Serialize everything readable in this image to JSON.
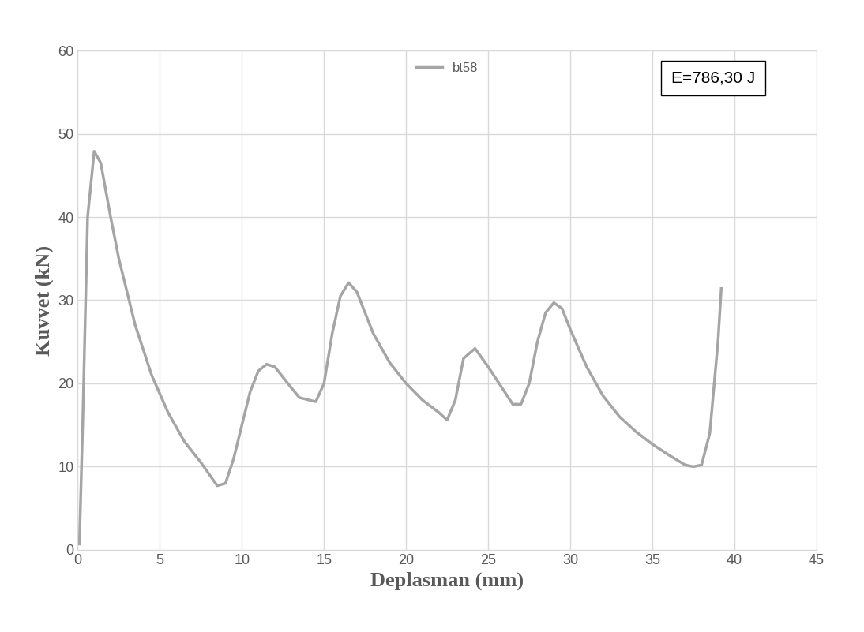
{
  "chart_data": {
    "type": "line",
    "x_label": "Deplasman (mm)",
    "y_label": "Kuvvet (kN)",
    "annotation": "E=786,30 J",
    "series": [
      {
        "name": "bt58",
        "color": "#a5a5a5",
        "x": [
          0.1,
          0.3,
          0.6,
          1.0,
          1.4,
          2.0,
          2.5,
          3.5,
          4.5,
          5.5,
          6.5,
          7.5,
          8.5,
          9.0,
          9.5,
          10.0,
          10.5,
          11.0,
          11.5,
          12.0,
          13.0,
          13.5,
          14.5,
          15.0,
          15.5,
          16.0,
          16.5,
          17.0,
          18.0,
          19.0,
          20.0,
          21.0,
          22.0,
          22.5,
          23.0,
          23.5,
          24.2,
          25.0,
          26.0,
          26.5,
          27.0,
          27.5,
          28.0,
          28.5,
          29.0,
          29.5,
          30.0,
          31.0,
          32.0,
          33.0,
          34.0,
          35.0,
          36.0,
          37.0,
          37.5,
          38.0,
          38.5,
          39.0,
          39.2
        ],
        "values": [
          0.7,
          15,
          40,
          47.9,
          46.5,
          40,
          35,
          27,
          21,
          16.5,
          13,
          10.5,
          7.7,
          8.0,
          11,
          15,
          19,
          21.5,
          22.3,
          22,
          19.5,
          18.3,
          17.8,
          20,
          26,
          30.5,
          32.1,
          31,
          26,
          22.5,
          20,
          18,
          16.5,
          15.6,
          18,
          23,
          24.2,
          22,
          19,
          17.5,
          17.5,
          20,
          25,
          28.5,
          29.7,
          29,
          26.5,
          22,
          18.5,
          16,
          14.2,
          12.7,
          11.4,
          10.2,
          10.0,
          10.2,
          14,
          25,
          31.4
        ]
      }
    ],
    "xlim": [
      0,
      45
    ],
    "xticks": [
      0,
      5,
      10,
      15,
      20,
      25,
      30,
      35,
      40,
      45
    ],
    "ylim": [
      0,
      60
    ],
    "yticks": [
      0,
      10,
      20,
      30,
      40,
      50,
      60
    ],
    "grid": true,
    "legend": "upper center"
  }
}
